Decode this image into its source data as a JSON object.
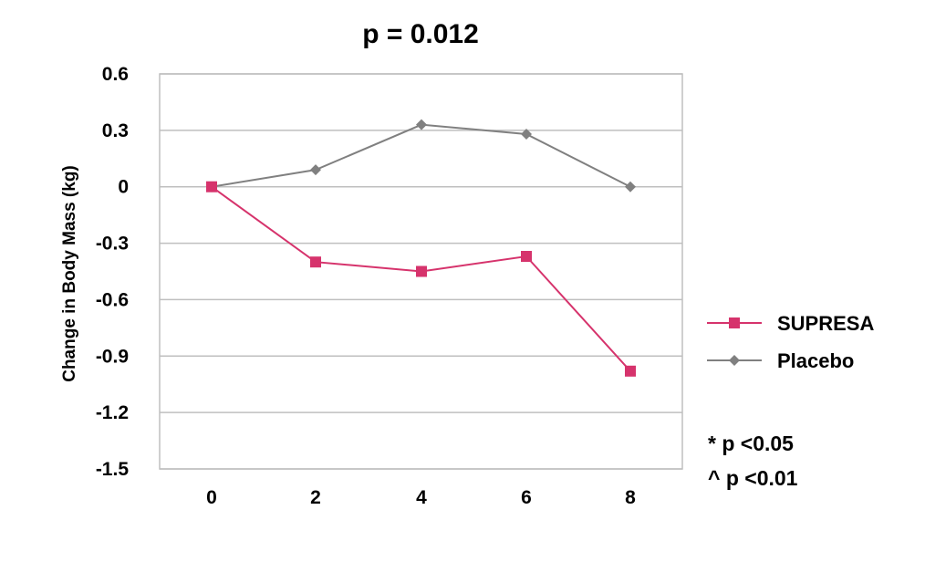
{
  "chart_data": {
    "type": "line",
    "title": "p = 0.012",
    "xlabel": "",
    "ylabel": "Change in Body Mass (kg)",
    "x": [
      0,
      2,
      4,
      6,
      8
    ],
    "x_tick_labels": [
      "0",
      "2",
      "4",
      "6",
      "8"
    ],
    "ylim": [
      -1.5,
      0.6
    ],
    "y_ticks": [
      0.6,
      0.3,
      0,
      -0.3,
      -0.6,
      -0.9,
      -1.2,
      -1.5
    ],
    "y_tick_labels": [
      "0.6",
      "0.3",
      "0",
      "-0.3",
      "-0.6",
      "-0.9",
      "-1.2",
      "-1.5"
    ],
    "grid": "horizontal",
    "legend_position": "right",
    "series": [
      {
        "name": "SUPRESA",
        "marker": "square",
        "color": "#d6336c",
        "values": [
          0,
          -0.4,
          -0.45,
          -0.37,
          -0.98
        ]
      },
      {
        "name": "Placebo",
        "marker": "diamond",
        "color": "#808080",
        "values": [
          0,
          0.09,
          0.33,
          0.28,
          0.0
        ]
      }
    ],
    "annotations": [
      "* p <0.05",
      "^ p <0.01"
    ]
  }
}
